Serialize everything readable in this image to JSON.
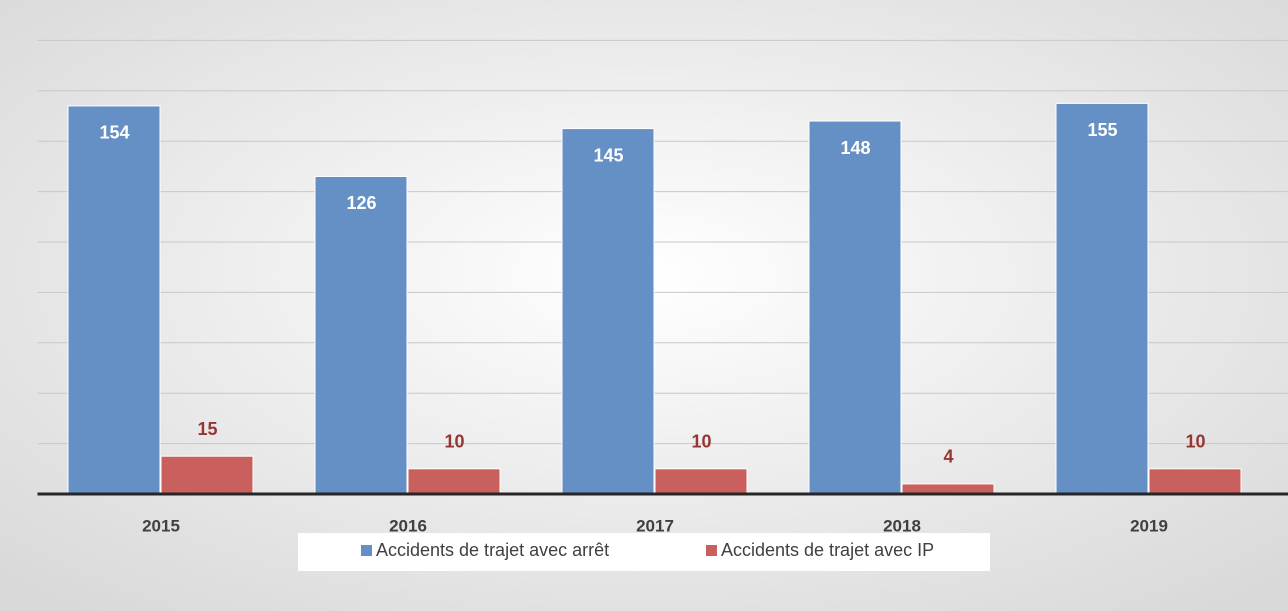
{
  "chart_data": {
    "type": "bar",
    "categories": [
      "2015",
      "2016",
      "2017",
      "2018",
      "2019"
    ],
    "series": [
      {
        "name": "Accidents de trajet avec arrêt",
        "color": "#6490c6",
        "values": [
          154,
          126,
          145,
          148,
          155
        ]
      },
      {
        "name": "Accidents de trajet avec IP",
        "color": "#c9605e",
        "values": [
          15,
          10,
          10,
          4,
          10
        ]
      }
    ],
    "ylim": [
      0,
      180
    ],
    "yticks": [
      0,
      20,
      40,
      60,
      80,
      100,
      120,
      140,
      160,
      180
    ],
    "grid": true
  }
}
